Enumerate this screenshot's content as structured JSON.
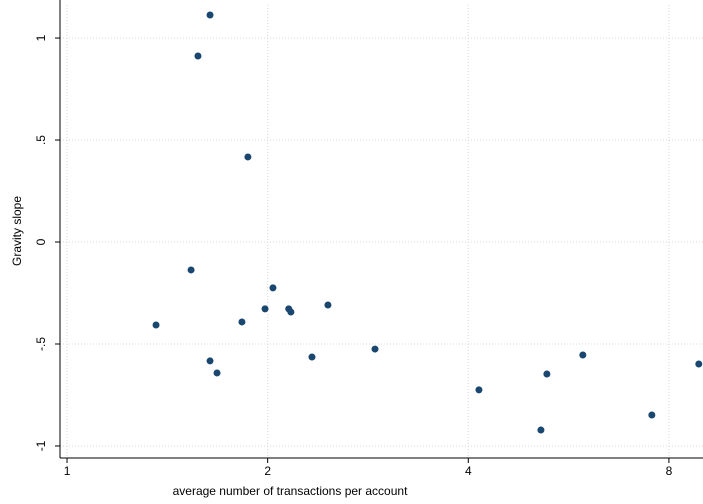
{
  "chart_data": {
    "type": "scatter",
    "x_label": "average number of transactions per account",
    "y_label": "Gravity slope",
    "x_scale": "log",
    "grid": true,
    "color": "#1a476f",
    "xlim": [
      0.976,
      9.0
    ],
    "ylim": [
      -1.059,
      1.162
    ],
    "xticks": [
      1,
      2,
      4,
      8
    ],
    "yticks": [
      {
        "value": -1,
        "label": "-1"
      },
      {
        "value": -0.5,
        "label": "-.5"
      },
      0,
      {
        "value": 0.5,
        "label": ".5"
      },
      1
    ],
    "x": [
      1.639,
      1.572,
      1.868,
      1.535,
      1.36,
      1.83,
      1.982,
      2.037,
      2.151,
      2.167,
      2.463,
      1.639,
      1.679,
      2.331,
      2.898,
      4.15,
      5.248,
      5.141,
      5.942,
      7.542,
      8.87
    ],
    "y": [
      1.113,
      0.912,
      0.417,
      -0.137,
      -0.407,
      -0.392,
      -0.328,
      -0.225,
      -0.328,
      -0.343,
      -0.309,
      -0.583,
      -0.642,
      -0.564,
      -0.525,
      -0.725,
      -0.647,
      -0.922,
      -0.554,
      -0.848,
      -0.598
    ]
  }
}
